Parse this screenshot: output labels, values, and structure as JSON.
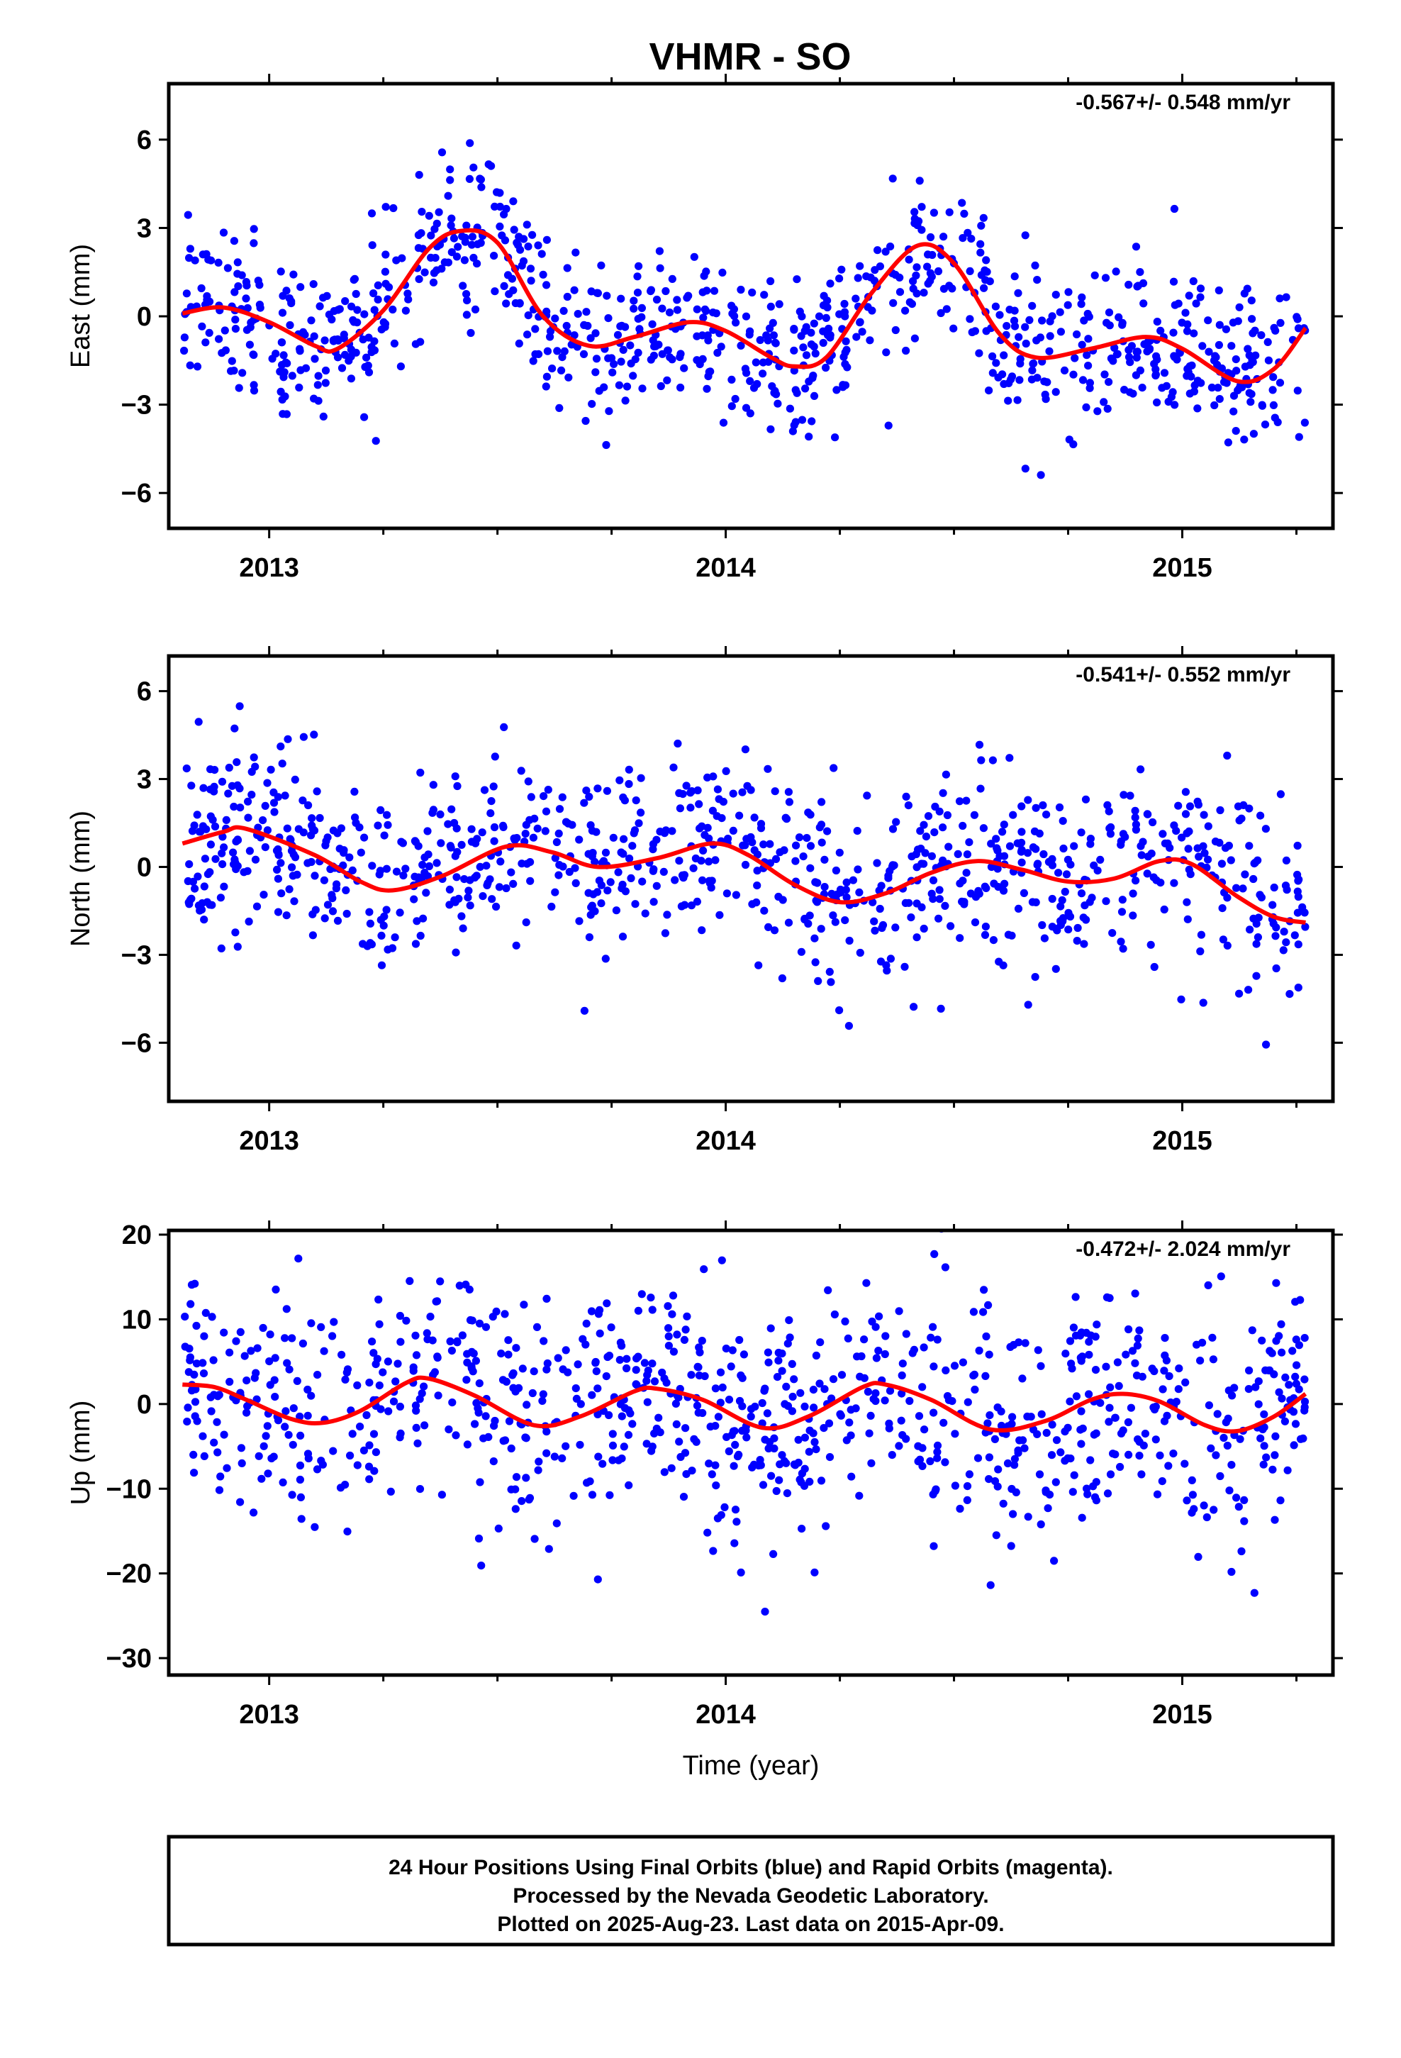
{
  "title": "VHMR - SO",
  "colors": {
    "points": "#0000ff",
    "fit": "#ff0000",
    "frame": "#000000"
  },
  "footer": {
    "lines": [
      "24 Hour Positions Using Final Orbits (blue) and Rapid Orbits (magenta).",
      "Processed by the Nevada Geodetic Laboratory.",
      "Plotted on 2025-Aug-23. Last data on 2015-Apr-09."
    ]
  },
  "chart_data": [
    {
      "type": "scatter",
      "component": "East",
      "title": "",
      "ylabel": "East (mm)",
      "xlabel": "",
      "rate_text": "-0.567+/- 0.548 mm/yr",
      "xlim": [
        2012.78,
        2015.33
      ],
      "ylim": [
        -7.2,
        7.9
      ],
      "x_major_ticks": [
        2013,
        2014,
        2015
      ],
      "x_minor_ticks": [
        2013.25,
        2013.5,
        2013.75,
        2014.25,
        2014.5,
        2014.75,
        2015.25
      ],
      "y_ticks": [
        -6,
        -3,
        0,
        3,
        6
      ],
      "y_tick_labels": [
        "−6",
        "−3",
        "0",
        "3",
        "6"
      ],
      "x_range": [
        2012.81,
        2015.27
      ],
      "points_count": 930,
      "seed": 11,
      "noise_sd": 1.35,
      "fit": {
        "x": [
          2012.81,
          2012.9,
          2013.0,
          2013.1,
          2013.15,
          2013.25,
          2013.35,
          2013.42,
          2013.5,
          2013.6,
          2013.7,
          2013.8,
          2013.92,
          2014.0,
          2014.1,
          2014.15,
          2014.22,
          2014.32,
          2014.42,
          2014.5,
          2014.6,
          2014.68,
          2014.8,
          2014.92,
          2015.0,
          2015.12,
          2015.2,
          2015.27
        ],
        "y": [
          0.1,
          0.3,
          -0.2,
          -1.0,
          -1.1,
          0.2,
          2.3,
          2.9,
          2.5,
          0.0,
          -1.0,
          -0.7,
          -0.2,
          -0.5,
          -1.4,
          -1.7,
          -1.4,
          0.8,
          2.4,
          1.8,
          -0.6,
          -1.4,
          -1.1,
          -0.7,
          -1.1,
          -2.2,
          -1.8,
          -0.4
        ]
      }
    },
    {
      "type": "scatter",
      "component": "North",
      "title": "",
      "ylabel": "North (mm)",
      "xlabel": "",
      "rate_text": "-0.541+/- 0.552 mm/yr",
      "xlim": [
        2012.78,
        2015.33
      ],
      "ylim": [
        -8.0,
        7.2
      ],
      "x_major_ticks": [
        2013,
        2014,
        2015
      ],
      "x_minor_ticks": [
        2013.25,
        2013.5,
        2013.75,
        2014.25,
        2014.5,
        2014.75,
        2015.25
      ],
      "y_ticks": [
        -6,
        -3,
        0,
        3,
        6
      ],
      "y_tick_labels": [
        "−6",
        "−3",
        "0",
        "3",
        "6"
      ],
      "x_range": [
        2012.81,
        2015.27
      ],
      "points_count": 930,
      "seed": 23,
      "noise_sd": 1.55,
      "fit": {
        "x": [
          2012.81,
          2012.9,
          2012.95,
          2013.1,
          2013.2,
          2013.27,
          2013.38,
          2013.52,
          2013.62,
          2013.72,
          2013.85,
          2013.97,
          2014.05,
          2014.15,
          2014.25,
          2014.35,
          2014.45,
          2014.55,
          2014.65,
          2014.75,
          2014.85,
          2014.95,
          2015.02,
          2015.12,
          2015.2,
          2015.27
        ],
        "y": [
          0.8,
          1.2,
          1.3,
          0.4,
          -0.5,
          -0.8,
          -0.3,
          0.7,
          0.5,
          0.0,
          0.3,
          0.8,
          0.4,
          -0.6,
          -1.2,
          -0.9,
          -0.2,
          0.2,
          -0.1,
          -0.5,
          -0.4,
          0.2,
          0.1,
          -1.0,
          -1.7,
          -1.9
        ]
      }
    },
    {
      "type": "scatter",
      "component": "Up",
      "title": "",
      "ylabel": "Up (mm)",
      "xlabel": "Time (year)",
      "rate_text": "-0.472+/- 2.024 mm/yr",
      "xlim": [
        2012.78,
        2015.33
      ],
      "ylim": [
        -32.0,
        20.5
      ],
      "x_major_ticks": [
        2013,
        2014,
        2015
      ],
      "x_minor_ticks": [
        2013.25,
        2013.5,
        2013.75,
        2014.25,
        2014.5,
        2014.75,
        2015.25
      ],
      "y_ticks": [
        -30,
        -20,
        -10,
        0,
        10,
        20
      ],
      "y_tick_labels": [
        "−30",
        "−20",
        "−10",
        "0",
        "10",
        "20"
      ],
      "x_range": [
        2012.81,
        2015.27
      ],
      "points_count": 930,
      "seed": 37,
      "noise_sd": 6.8,
      "fit": {
        "x": [
          2012.81,
          2012.88,
          2012.95,
          2013.05,
          2013.12,
          2013.2,
          2013.3,
          2013.35,
          2013.45,
          2013.58,
          2013.68,
          2013.8,
          2013.85,
          2013.95,
          2014.08,
          2014.18,
          2014.3,
          2014.35,
          2014.45,
          2014.58,
          2014.7,
          2014.8,
          2014.87,
          2014.95,
          2015.05,
          2015.12,
          2015.2,
          2015.27
        ],
        "y": [
          2.3,
          2.0,
          0.5,
          -1.8,
          -2.2,
          -0.8,
          2.5,
          3.0,
          1.0,
          -2.5,
          -1.5,
          1.5,
          1.8,
          0.5,
          -2.8,
          -1.5,
          2.0,
          2.3,
          0.5,
          -3.0,
          -2.0,
          0.5,
          1.2,
          0.3,
          -2.5,
          -3.2,
          -1.5,
          1.2
        ]
      }
    }
  ]
}
